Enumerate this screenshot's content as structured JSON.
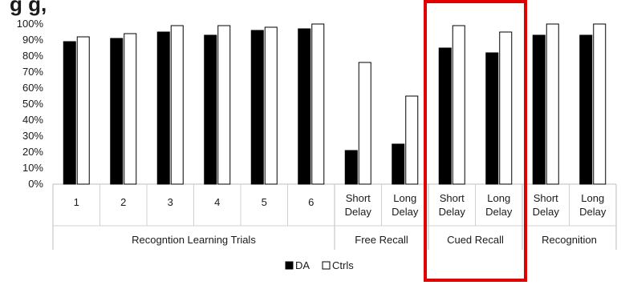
{
  "chart_data": {
    "type": "bar",
    "title_visible_fragment": "g                    g, ",
    "categories": [
      "1",
      "2",
      "3",
      "4",
      "5",
      "6",
      "Short Delay",
      "Long Delay",
      "Short Delay",
      "Long Delay",
      "Short Delay",
      "Long Delay"
    ],
    "category_lines": [
      [
        "1"
      ],
      [
        "2"
      ],
      [
        "3"
      ],
      [
        "4"
      ],
      [
        "5"
      ],
      [
        "6"
      ],
      [
        "Short",
        "Delay"
      ],
      [
        "Long",
        "Delay"
      ],
      [
        "Short",
        "Delay"
      ],
      [
        "Long",
        "Delay"
      ],
      [
        "Short",
        "Delay"
      ],
      [
        "Long",
        "Delay"
      ]
    ],
    "groups": [
      {
        "label": "Recogntion Learning Trials",
        "span": 6
      },
      {
        "label": "Free Recall",
        "span": 2
      },
      {
        "label": "Cued Recall",
        "span": 2
      },
      {
        "label": "Recognition",
        "span": 2
      }
    ],
    "series": [
      {
        "name": "DA",
        "color": "#000000",
        "values": [
          89,
          91,
          95,
          93,
          96,
          97,
          21,
          25,
          85,
          82,
          93,
          93
        ]
      },
      {
        "name": "Ctrls",
        "color": "#ffffff",
        "values": [
          92,
          94,
          99,
          99,
          98,
          100,
          76,
          55,
          99,
          95,
          100,
          100
        ]
      }
    ],
    "ylim": [
      0,
      100
    ],
    "yticks": [
      "0%",
      "10%",
      "20%",
      "30%",
      "40%",
      "50%",
      "60%",
      "70%",
      "80%",
      "90%",
      "100%"
    ],
    "legend_position": "bottom",
    "highlight": {
      "group": "Cued Recall",
      "color": "#e00000"
    }
  }
}
